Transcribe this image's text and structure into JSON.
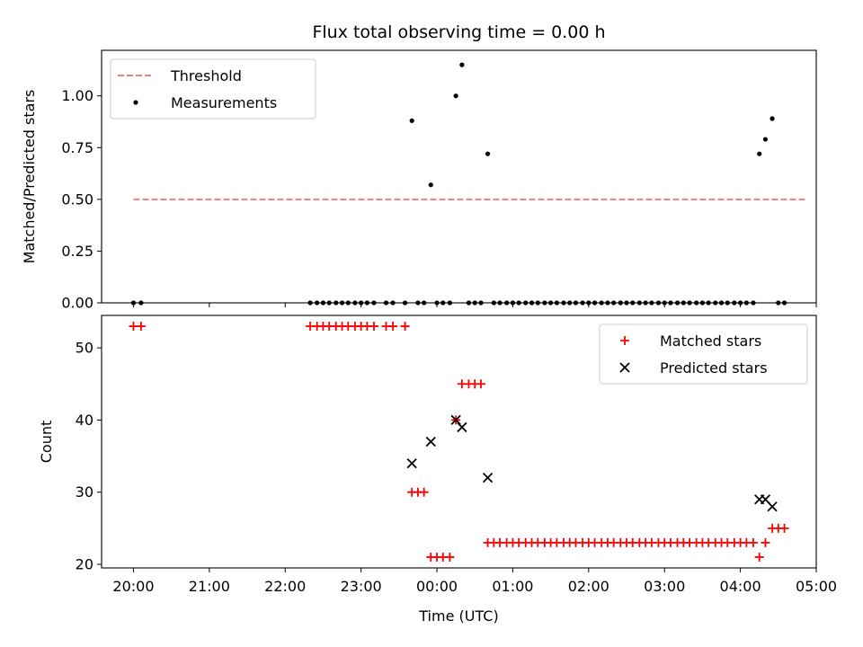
{
  "chart_data": {
    "type": "scatter",
    "title": "Flux total observing time = 0.00 h",
    "xlabel": "Time (UTC)",
    "x_unit": "hours since 20:00 UTC",
    "xlim": [
      -0.42,
      9.0
    ],
    "xticks": [
      0,
      1,
      2,
      3,
      4,
      5,
      6,
      7,
      8,
      9
    ],
    "xtick_labels": [
      "20:00",
      "21:00",
      "22:00",
      "23:00",
      "00:00",
      "01:00",
      "02:00",
      "03:00",
      "04:00",
      "05:00"
    ],
    "panels": [
      {
        "ylabel": "Matched/Predicted stars",
        "ylim": [
          0,
          1.22
        ],
        "yticks": [
          0,
          0.25,
          0.5,
          0.75,
          1.0
        ],
        "ytick_labels": [
          "0.00",
          "0.25",
          "0.50",
          "0.75",
          "1.00"
        ],
        "legend_position": "top-left",
        "threshold": {
          "name": "Threshold",
          "value": 0.5,
          "x_range": [
            0,
            8.85
          ],
          "color": "#f08080"
        },
        "series": [
          {
            "name": "Measurements",
            "color": "#000000",
            "points": [
              [
                0.0,
                0
              ],
              [
                0.1,
                0
              ],
              [
                2.33,
                0
              ],
              [
                2.42,
                0
              ],
              [
                2.5,
                0
              ],
              [
                2.58,
                0
              ],
              [
                2.67,
                0
              ],
              [
                2.75,
                0
              ],
              [
                2.83,
                0
              ],
              [
                2.92,
                0
              ],
              [
                3.0,
                0
              ],
              [
                3.08,
                0
              ],
              [
                3.17,
                0
              ],
              [
                3.33,
                0
              ],
              [
                3.42,
                0
              ],
              [
                3.58,
                0
              ],
              [
                3.67,
                0.88
              ],
              [
                3.75,
                0
              ],
              [
                3.83,
                0
              ],
              [
                3.92,
                0.57
              ],
              [
                4.0,
                0
              ],
              [
                4.08,
                0
              ],
              [
                4.17,
                0
              ],
              [
                4.25,
                1.0
              ],
              [
                4.33,
                1.15
              ],
              [
                4.42,
                0
              ],
              [
                4.5,
                0
              ],
              [
                4.58,
                0
              ],
              [
                4.67,
                0.72
              ],
              [
                4.75,
                0
              ],
              [
                4.83,
                0
              ],
              [
                4.92,
                0
              ],
              [
                5.0,
                0
              ],
              [
                5.08,
                0
              ],
              [
                5.17,
                0
              ],
              [
                5.25,
                0
              ],
              [
                5.33,
                0
              ],
              [
                5.42,
                0
              ],
              [
                5.5,
                0
              ],
              [
                5.58,
                0
              ],
              [
                5.67,
                0
              ],
              [
                5.75,
                0
              ],
              [
                5.83,
                0
              ],
              [
                5.92,
                0
              ],
              [
                6.0,
                0
              ],
              [
                6.08,
                0
              ],
              [
                6.17,
                0
              ],
              [
                6.25,
                0
              ],
              [
                6.33,
                0
              ],
              [
                6.42,
                0
              ],
              [
                6.5,
                0
              ],
              [
                6.58,
                0
              ],
              [
                6.67,
                0
              ],
              [
                6.75,
                0
              ],
              [
                6.83,
                0
              ],
              [
                6.92,
                0
              ],
              [
                7.0,
                0
              ],
              [
                7.08,
                0
              ],
              [
                7.17,
                0
              ],
              [
                7.25,
                0
              ],
              [
                7.33,
                0
              ],
              [
                7.42,
                0
              ],
              [
                7.5,
                0
              ],
              [
                7.58,
                0
              ],
              [
                7.67,
                0
              ],
              [
                7.75,
                0
              ],
              [
                7.83,
                0
              ],
              [
                7.92,
                0
              ],
              [
                8.0,
                0
              ],
              [
                8.08,
                0
              ],
              [
                8.17,
                0
              ],
              [
                8.25,
                0.72
              ],
              [
                8.33,
                0.79
              ],
              [
                8.42,
                0.89
              ],
              [
                8.5,
                0
              ],
              [
                8.58,
                0
              ]
            ]
          }
        ]
      },
      {
        "ylabel": "Count",
        "ylim": [
          19.5,
          54.5
        ],
        "yticks": [
          20,
          30,
          40,
          50
        ],
        "ytick_labels": [
          "20",
          "30",
          "40",
          "50"
        ],
        "legend_position": "top-right",
        "series": [
          {
            "name": "Matched stars",
            "color": "#ff0000",
            "marker": "plus",
            "points": [
              [
                0.0,
                53
              ],
              [
                0.1,
                53
              ],
              [
                2.33,
                53
              ],
              [
                2.42,
                53
              ],
              [
                2.5,
                53
              ],
              [
                2.58,
                53
              ],
              [
                2.67,
                53
              ],
              [
                2.75,
                53
              ],
              [
                2.83,
                53
              ],
              [
                2.92,
                53
              ],
              [
                3.0,
                53
              ],
              [
                3.08,
                53
              ],
              [
                3.17,
                53
              ],
              [
                3.33,
                53
              ],
              [
                3.42,
                53
              ],
              [
                3.58,
                53
              ],
              [
                3.67,
                30
              ],
              [
                3.75,
                30
              ],
              [
                3.83,
                30
              ],
              [
                3.92,
                21
              ],
              [
                4.0,
                21
              ],
              [
                4.08,
                21
              ],
              [
                4.17,
                21
              ],
              [
                4.25,
                40
              ],
              [
                4.33,
                45
              ],
              [
                4.42,
                45
              ],
              [
                4.5,
                45
              ],
              [
                4.58,
                45
              ],
              [
                4.67,
                23
              ],
              [
                4.75,
                23
              ],
              [
                4.83,
                23
              ],
              [
                4.92,
                23
              ],
              [
                5.0,
                23
              ],
              [
                5.08,
                23
              ],
              [
                5.17,
                23
              ],
              [
                5.25,
                23
              ],
              [
                5.33,
                23
              ],
              [
                5.42,
                23
              ],
              [
                5.5,
                23
              ],
              [
                5.58,
                23
              ],
              [
                5.67,
                23
              ],
              [
                5.75,
                23
              ],
              [
                5.83,
                23
              ],
              [
                5.92,
                23
              ],
              [
                6.0,
                23
              ],
              [
                6.08,
                23
              ],
              [
                6.17,
                23
              ],
              [
                6.25,
                23
              ],
              [
                6.33,
                23
              ],
              [
                6.42,
                23
              ],
              [
                6.5,
                23
              ],
              [
                6.58,
                23
              ],
              [
                6.67,
                23
              ],
              [
                6.75,
                23
              ],
              [
                6.83,
                23
              ],
              [
                6.92,
                23
              ],
              [
                7.0,
                23
              ],
              [
                7.08,
                23
              ],
              [
                7.17,
                23
              ],
              [
                7.25,
                23
              ],
              [
                7.33,
                23
              ],
              [
                7.42,
                23
              ],
              [
                7.5,
                23
              ],
              [
                7.58,
                23
              ],
              [
                7.67,
                23
              ],
              [
                7.75,
                23
              ],
              [
                7.83,
                23
              ],
              [
                7.92,
                23
              ],
              [
                8.0,
                23
              ],
              [
                8.08,
                23
              ],
              [
                8.17,
                23
              ],
              [
                8.25,
                21
              ],
              [
                8.33,
                23
              ],
              [
                8.42,
                25
              ],
              [
                8.5,
                25
              ],
              [
                8.58,
                25
              ]
            ]
          },
          {
            "name": "Predicted stars",
            "color": "#000000",
            "marker": "x",
            "points": [
              [
                3.67,
                34
              ],
              [
                3.92,
                37
              ],
              [
                4.25,
                40
              ],
              [
                4.33,
                39
              ],
              [
                4.67,
                32
              ],
              [
                8.25,
                29
              ],
              [
                8.33,
                29
              ],
              [
                8.42,
                28
              ]
            ]
          }
        ]
      }
    ]
  }
}
